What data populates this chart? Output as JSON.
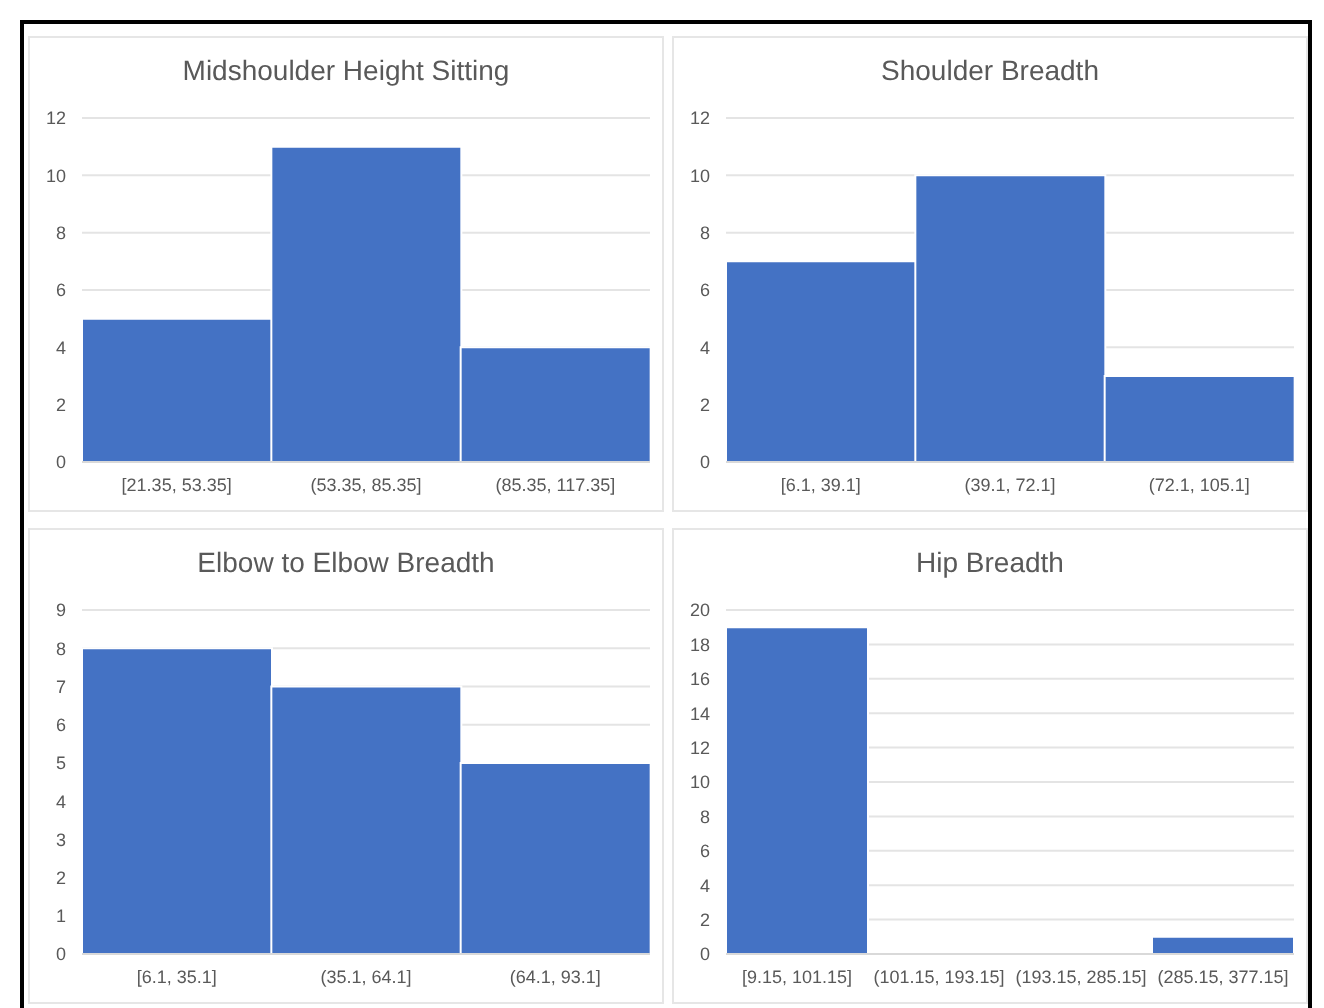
{
  "chart_data": [
    {
      "type": "bar",
      "title": "Midshoulder Height Sitting",
      "categories": [
        "[21.35, 53.35]",
        "(53.35, 85.35]",
        "(85.35, 117.35]"
      ],
      "values": [
        5,
        11,
        4
      ],
      "color": "#4472c4",
      "ylim": [
        0,
        12
      ],
      "yticks": [
        0,
        2,
        4,
        6,
        8,
        10,
        12
      ],
      "grid": "y"
    },
    {
      "type": "bar",
      "title": "Shoulder Breadth",
      "categories": [
        "[6.1, 39.1]",
        "(39.1, 72.1]",
        "(72.1, 105.1]"
      ],
      "values": [
        7,
        10,
        3
      ],
      "color": "#4472c4",
      "ylim": [
        0,
        12
      ],
      "yticks": [
        0,
        2,
        4,
        6,
        8,
        10,
        12
      ],
      "grid": "y"
    },
    {
      "type": "bar",
      "title": "Elbow to Elbow Breadth",
      "categories": [
        "[6.1, 35.1]",
        "(35.1, 64.1]",
        "(64.1, 93.1]"
      ],
      "values": [
        8,
        7,
        5
      ],
      "color": "#4472c4",
      "ylim": [
        0,
        9
      ],
      "yticks": [
        0,
        1,
        2,
        3,
        4,
        5,
        6,
        7,
        8,
        9
      ],
      "grid": "y"
    },
    {
      "type": "bar",
      "title": "Hip Breadth",
      "categories": [
        "[9.15, 101.15]",
        "(101.15, 193.15]",
        "(193.15, 285.15]",
        "(285.15, 377.15]"
      ],
      "values": [
        19,
        0,
        0,
        1
      ],
      "color": "#4472c4",
      "ylim": [
        0,
        20
      ],
      "yticks": [
        0,
        2,
        4,
        6,
        8,
        10,
        12,
        14,
        16,
        18,
        20
      ],
      "grid": "y"
    }
  ]
}
